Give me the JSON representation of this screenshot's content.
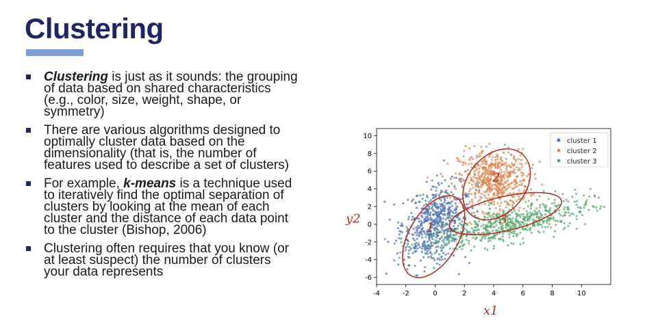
{
  "slide": {
    "title": "Clustering",
    "bullets": [
      {
        "em": "Clustering",
        "text": " is just as it sounds:  the grouping of data based on shared characteristics (e.g., color, size, weight, shape, or symmetry)"
      },
      {
        "pre": "There are various algorithms designed to optimally cluster data based on the dimensionality (that is, the number of features used to describe a set of clusters)"
      },
      {
        "pre": "For example, ",
        "em": "k-means",
        "text": " is a technique used to iteratively find the optimal separation of clusters by looking at the mean of each cluster and the distance of each data point to the cluster (Bishop, 2006)"
      },
      {
        "pre": "Clustering often requires that you know (or at least suspect) the number of clusters your data represents"
      }
    ]
  },
  "colors": {
    "title": "#1f2463",
    "accent_bar": "#7f9fd8",
    "annotation": "#b03020"
  },
  "annotations": {
    "y_axis": "y2",
    "x_axis": "x1",
    "cluster_labels": [
      "1",
      "2",
      "3"
    ]
  },
  "chart_data": {
    "type": "scatter",
    "xlim": [
      -4,
      12
    ],
    "ylim": [
      -6.8,
      10.8
    ],
    "xticks": [
      -4,
      -2,
      0,
      2,
      4,
      6,
      8,
      10
    ],
    "yticks": [
      -6,
      -4,
      -2,
      0,
      2,
      4,
      6,
      8,
      10
    ],
    "legend_position": "top-right",
    "series": [
      {
        "name": "cluster 1",
        "color": "#4c72b0",
        "center": [
          0,
          0
        ],
        "spread": [
          1.1,
          2.2
        ],
        "n": 600
      },
      {
        "name": "cluster 2",
        "color": "#dd8452",
        "center": [
          4,
          5
        ],
        "spread": [
          1.2,
          1.7
        ],
        "n": 600
      },
      {
        "name": "cluster 3",
        "color": "#55a868",
        "center": [
          5,
          0
        ],
        "spread": [
          2.8,
          1.0
        ],
        "n": 600
      }
    ]
  }
}
